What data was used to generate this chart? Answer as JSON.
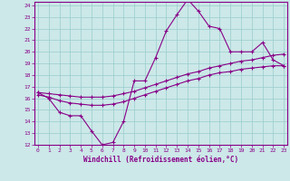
{
  "xlabel": "Windchill (Refroidissement éolien,°C)",
  "bg_color": "#cce8e8",
  "line_color": "#880088",
  "grid_color": "#99cccc",
  "x_hours": [
    0,
    1,
    2,
    3,
    4,
    5,
    6,
    7,
    8,
    9,
    10,
    11,
    12,
    13,
    14,
    15,
    16,
    17,
    18,
    19,
    20,
    21,
    22,
    23
  ],
  "windchill": [
    16.5,
    16.0,
    14.8,
    14.5,
    14.5,
    13.2,
    12.0,
    12.2,
    14.0,
    17.5,
    17.5,
    19.5,
    21.8,
    23.2,
    24.5,
    23.5,
    22.2,
    22.0,
    20.0,
    20.0,
    20.0,
    20.8,
    19.3,
    18.8
  ],
  "line2": [
    16.3,
    16.1,
    15.8,
    15.6,
    15.5,
    15.4,
    15.4,
    15.5,
    15.7,
    16.0,
    16.3,
    16.6,
    16.9,
    17.2,
    17.5,
    17.7,
    18.0,
    18.2,
    18.3,
    18.5,
    18.6,
    18.7,
    18.8,
    18.8
  ],
  "line3": [
    16.5,
    16.4,
    16.3,
    16.2,
    16.1,
    16.1,
    16.1,
    16.2,
    16.4,
    16.6,
    16.9,
    17.2,
    17.5,
    17.8,
    18.1,
    18.3,
    18.6,
    18.8,
    19.0,
    19.2,
    19.3,
    19.5,
    19.7,
    19.8
  ],
  "ylim_min": 12,
  "ylim_max": 24,
  "xlim_min": 0,
  "xlim_max": 23
}
